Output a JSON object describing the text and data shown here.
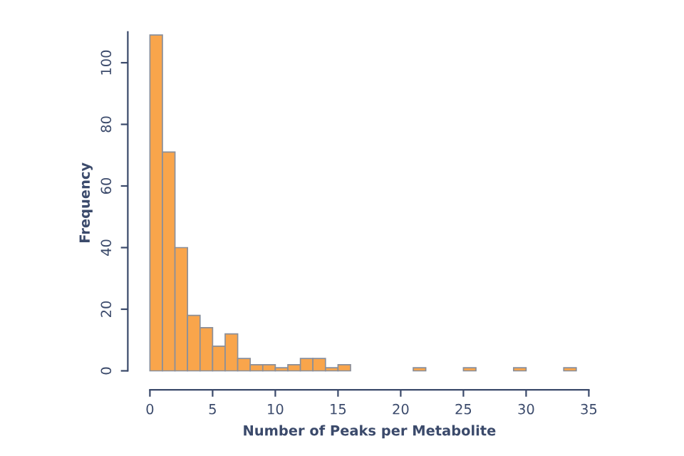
{
  "chart_data": {
    "type": "histogram",
    "xlabel": "Number of Peaks per Metabolite",
    "ylabel": "Frequency",
    "bins": [
      0,
      1,
      2,
      3,
      4,
      5,
      6,
      7,
      8,
      9,
      10,
      11,
      12,
      13,
      14,
      15,
      16,
      17,
      18,
      19,
      20,
      21,
      22,
      23,
      24,
      25,
      26,
      27,
      28,
      29,
      30,
      31,
      32,
      33,
      34
    ],
    "values": [
      109,
      71,
      40,
      18,
      14,
      8,
      12,
      4,
      2,
      2,
      1,
      2,
      4,
      4,
      1,
      2,
      0,
      0,
      0,
      0,
      0,
      1,
      0,
      0,
      0,
      1,
      0,
      0,
      0,
      1,
      0,
      0,
      0,
      1
    ],
    "color": "#f9a54b",
    "xlim": [
      0,
      35
    ],
    "xticks": [
      0,
      5,
      10,
      15,
      20,
      25,
      30,
      35
    ],
    "ylim": [
      0,
      110
    ],
    "yticks": [
      0,
      20,
      40,
      60,
      80,
      100
    ],
    "grid": false
  }
}
